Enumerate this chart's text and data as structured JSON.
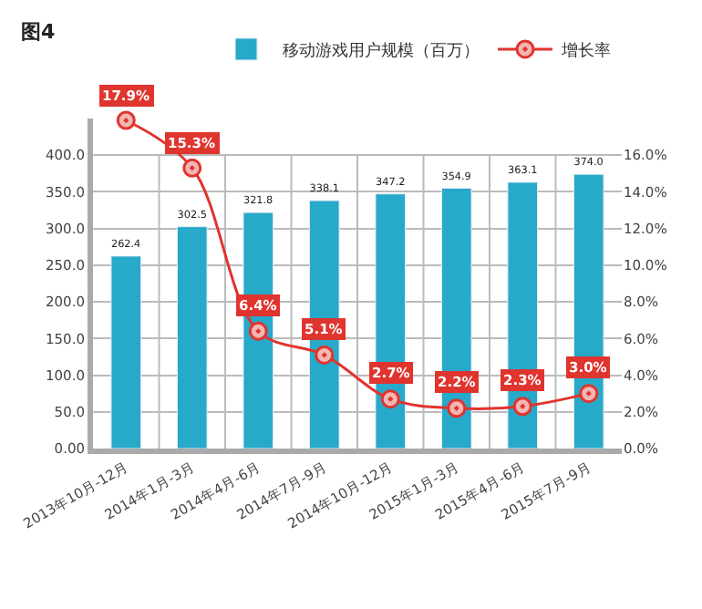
{
  "chart_data": {
    "type": "bar",
    "title": "图4",
    "categories": [
      "2013年10月-12月",
      "2014年1月-3月",
      "2014年4月-6月",
      "2014年7月-9月",
      "2014年10月-12月",
      "2015年1月-3月",
      "2015年4月-6月",
      "2015年7月-9月"
    ],
    "series": [
      {
        "name": "移动游戏用户规模（百万）",
        "color": "#27a9c9",
        "values": [
          262.4,
          302.5,
          321.8,
          338.1,
          347.2,
          354.9,
          363.1,
          374.0
        ],
        "value_labels": [
          "262.4",
          "302.5",
          "321.8",
          "338.1",
          "347.2",
          "354.9",
          "363.1",
          "374.0"
        ]
      },
      {
        "name": "增长率",
        "type": "line",
        "axis": "y2",
        "color": "#e0342e",
        "marker": "circle",
        "values": [
          17.9,
          15.3,
          6.4,
          5.1,
          2.7,
          2.2,
          2.3,
          3.0
        ],
        "value_labels": [
          "17.9%",
          "15.3%",
          "6.4%",
          "5.1%",
          "2.7%",
          "2.2%",
          "2.3%",
          "3.0%"
        ]
      }
    ],
    "ylim": [
      0,
      450
    ],
    "yticks": [
      {
        "value": 0,
        "label": "0.00"
      },
      {
        "value": 50,
        "label": "50.0"
      },
      {
        "value": 100,
        "label": "100.0"
      },
      {
        "value": 150,
        "label": "150.0"
      },
      {
        "value": 200,
        "label": "200.0"
      },
      {
        "value": 250,
        "label": "250.0"
      },
      {
        "value": 300,
        "label": "300.0"
      },
      {
        "value": 350,
        "label": "350.0"
      },
      {
        "value": 400,
        "label": "400.0"
      }
    ],
    "y2lim": [
      0,
      18
    ],
    "y2ticks": [
      {
        "value": 0,
        "label": "0.0%"
      },
      {
        "value": 2,
        "label": "2.0%"
      },
      {
        "value": 4,
        "label": "4.0%"
      },
      {
        "value": 6,
        "label": "6.0%"
      },
      {
        "value": 8,
        "label": "8.0%"
      },
      {
        "value": 10,
        "label": "10.0%"
      },
      {
        "value": 12,
        "label": "12.0%"
      },
      {
        "value": 14,
        "label": "14.0%"
      },
      {
        "value": 16,
        "label": "16.0%"
      }
    ],
    "grid": true,
    "legend": "top right"
  }
}
